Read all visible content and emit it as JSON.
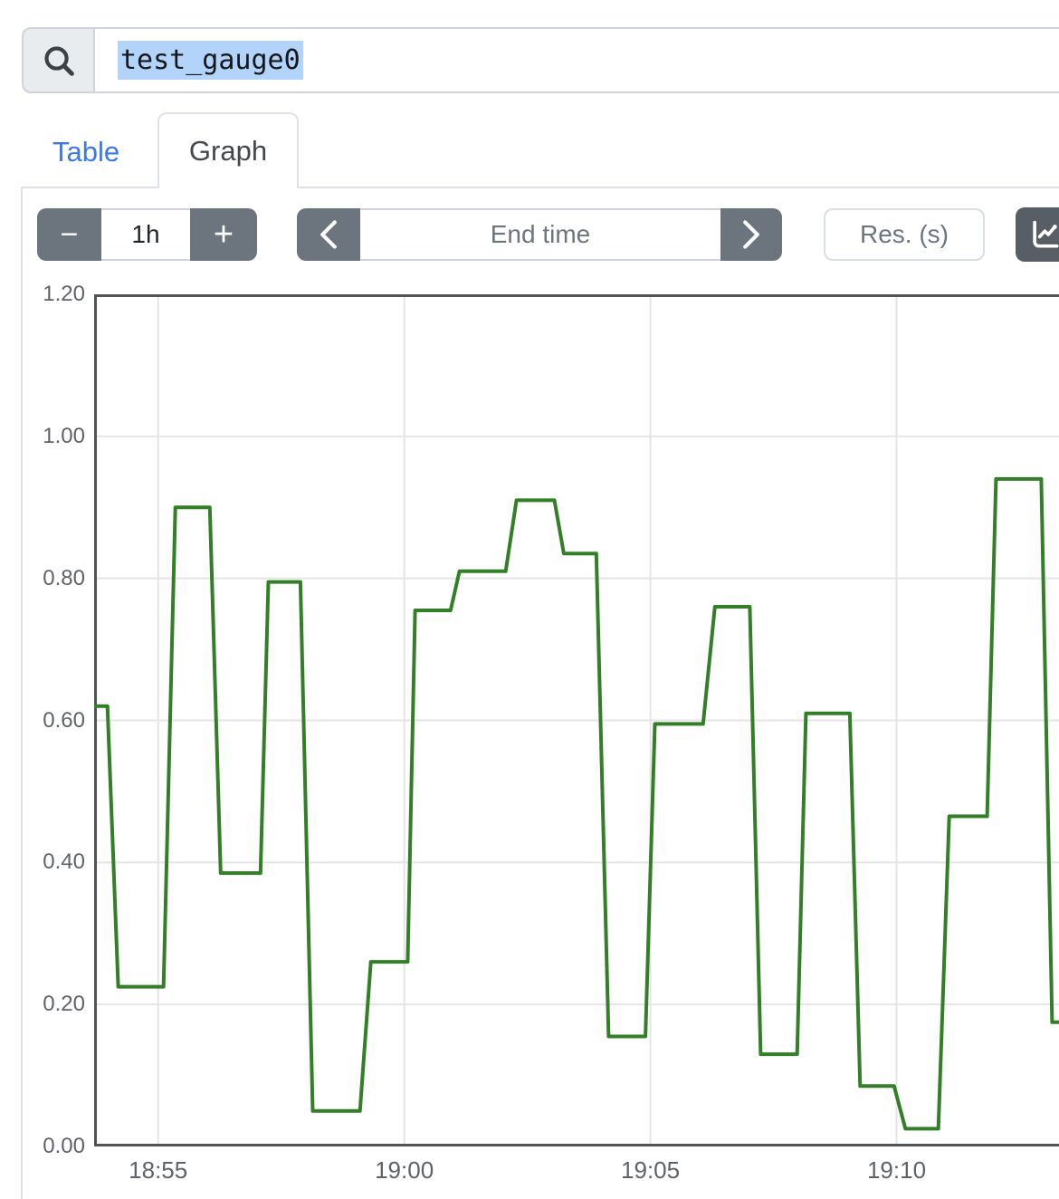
{
  "search": {
    "icon": "magnifier",
    "value": "test_gauge0",
    "selected": true,
    "selection_color": "#b3d4fa"
  },
  "tabs": {
    "table": "Table",
    "graph": "Graph",
    "active": "Graph"
  },
  "toolbar": {
    "range_decrement": "−",
    "range_value": "1h",
    "range_increment": "+",
    "prev_icon": "chevron-left",
    "next_icon": "chevron-right",
    "end_time_placeholder": "End time",
    "res_placeholder": "Res. (s)",
    "chart_button_icon": "line-chart"
  },
  "colors": {
    "line_green": "#337f27",
    "link_blue": "#3c78e8",
    "button_gray": "#6c757d",
    "button_dark": "#575e65",
    "frame": "#515457",
    "grid": "#e4e4e4",
    "border_light": "#dee2e6",
    "input_border": "#ced4da",
    "selection": "#b3d4fa"
  },
  "chart_data": {
    "type": "line",
    "style": "step",
    "title": "",
    "xlabel": "",
    "ylabel": "",
    "grid": true,
    "legend": "none",
    "x_axis": {
      "note": "t = minutes after 18:55",
      "range": [
        -1.3,
        18.3
      ],
      "ticks": [
        {
          "t": 0,
          "label": "18:55"
        },
        {
          "t": 5,
          "label": "19:00"
        },
        {
          "t": 10,
          "label": "19:05"
        },
        {
          "t": 15,
          "label": "19:10"
        }
      ]
    },
    "y_axis": {
      "range": [
        0,
        1.2
      ],
      "ticks": [
        {
          "value": 1.2,
          "label": "1.20"
        },
        {
          "value": 1.0,
          "label": "1.00"
        },
        {
          "value": 0.8,
          "label": "0.80"
        },
        {
          "value": 0.6,
          "label": "0.60"
        },
        {
          "value": 0.4,
          "label": "0.40"
        },
        {
          "value": 0.2,
          "label": "0.20"
        },
        {
          "value": 0.0,
          "label": "0.00"
        }
      ]
    },
    "series": [
      {
        "name": "test_gauge0",
        "color": "#337f27",
        "points": [
          [
            -1.3,
            0.62
          ],
          [
            -1.03,
            0.62
          ],
          [
            -0.81,
            0.225
          ],
          [
            0.11,
            0.225
          ],
          [
            0.35,
            0.9
          ],
          [
            1.05,
            0.9
          ],
          [
            1.27,
            0.385
          ],
          [
            2.08,
            0.385
          ],
          [
            2.24,
            0.795
          ],
          [
            2.89,
            0.795
          ],
          [
            3.14,
            0.05
          ],
          [
            4.1,
            0.05
          ],
          [
            4.32,
            0.26
          ],
          [
            5.07,
            0.26
          ],
          [
            5.22,
            0.755
          ],
          [
            5.94,
            0.755
          ],
          [
            6.12,
            0.81
          ],
          [
            7.06,
            0.81
          ],
          [
            7.28,
            0.91
          ],
          [
            8.05,
            0.91
          ],
          [
            8.24,
            0.835
          ],
          [
            8.9,
            0.835
          ],
          [
            9.15,
            0.155
          ],
          [
            9.9,
            0.155
          ],
          [
            10.09,
            0.595
          ],
          [
            11.07,
            0.595
          ],
          [
            11.31,
            0.76
          ],
          [
            12.02,
            0.76
          ],
          [
            12.24,
            0.13
          ],
          [
            12.98,
            0.13
          ],
          [
            13.16,
            0.61
          ],
          [
            14.05,
            0.61
          ],
          [
            14.26,
            0.085
          ],
          [
            14.95,
            0.085
          ],
          [
            15.18,
            0.025
          ],
          [
            15.85,
            0.025
          ],
          [
            16.07,
            0.465
          ],
          [
            16.84,
            0.465
          ],
          [
            17.02,
            0.94
          ],
          [
            17.94,
            0.94
          ],
          [
            18.16,
            0.175
          ],
          [
            18.45,
            0.175
          ]
        ]
      }
    ]
  }
}
